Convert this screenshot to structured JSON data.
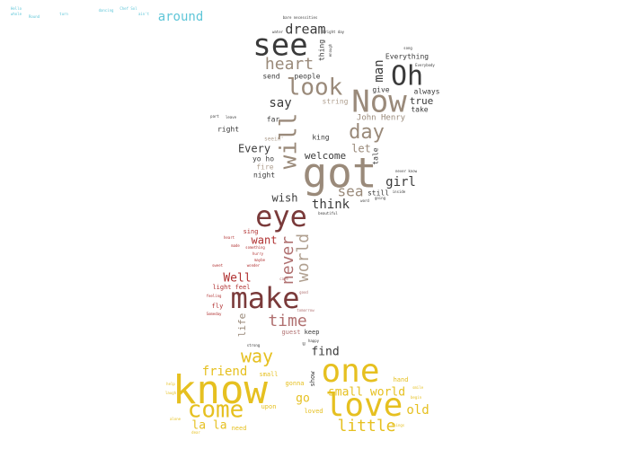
{
  "colors": {
    "background": "#ffffff",
    "cyan": "#5fc6d8",
    "grey_dark": "#3a3a3a",
    "taupe": "#9a8a7a",
    "brown": "#7a3a3a",
    "red": "#b03030",
    "rose": "#b07070",
    "gold": "#e6c020",
    "tan": "#b0a090"
  },
  "words": [
    {
      "text": "know",
      "color": "gold"
    },
    {
      "text": "got",
      "color": "taupe"
    },
    {
      "text": "one",
      "color": "gold"
    },
    {
      "text": "love",
      "color": "gold"
    },
    {
      "text": "Now",
      "color": "taupe"
    },
    {
      "text": "make",
      "color": "brown"
    },
    {
      "text": "see",
      "color": "grey_dark"
    },
    {
      "text": "eye",
      "color": "brown"
    },
    {
      "text": "come",
      "color": "gold"
    },
    {
      "text": "Oh",
      "color": "grey_dark"
    },
    {
      "text": "look",
      "color": "taupe"
    },
    {
      "text": "will",
      "color": "taupe"
    },
    {
      "text": "heart",
      "color": "taupe"
    },
    {
      "text": "day",
      "color": "taupe"
    },
    {
      "text": "little",
      "color": "gold"
    },
    {
      "text": "way",
      "color": "gold"
    },
    {
      "text": "time",
      "color": "rose"
    },
    {
      "text": "never",
      "color": "rose"
    },
    {
      "text": "world",
      "color": "tan"
    },
    {
      "text": "dream",
      "color": "grey_dark"
    },
    {
      "text": "say",
      "color": "grey_dark"
    },
    {
      "text": "sea",
      "color": "taupe"
    },
    {
      "text": "girl",
      "color": "grey_dark"
    },
    {
      "text": "man",
      "color": "grey_dark"
    },
    {
      "text": "think",
      "color": "grey_dark"
    },
    {
      "text": "friend",
      "color": "gold"
    },
    {
      "text": "old",
      "color": "gold"
    },
    {
      "text": "small world",
      "color": "gold"
    },
    {
      "text": "around",
      "color": "cyan"
    },
    {
      "text": "Well",
      "color": "red"
    },
    {
      "text": "find",
      "color": "grey_dark"
    },
    {
      "text": "wish",
      "color": "grey_dark"
    },
    {
      "text": "welcome",
      "color": "grey_dark"
    },
    {
      "text": "Every",
      "color": "grey_dark"
    },
    {
      "text": "let",
      "color": "taupe"
    },
    {
      "text": "la la",
      "color": "gold"
    },
    {
      "text": "want",
      "color": "red"
    },
    {
      "text": "go",
      "color": "gold"
    },
    {
      "text": "true",
      "color": "grey_dark"
    },
    {
      "text": "life",
      "color": "taupe"
    },
    {
      "text": "John Henry",
      "color": "taupe"
    },
    {
      "text": "Everything",
      "color": "grey_dark"
    },
    {
      "text": "people",
      "color": "grey_dark"
    },
    {
      "text": "far",
      "color": "grey_dark"
    },
    {
      "text": "right",
      "color": "grey_dark"
    },
    {
      "text": "king",
      "color": "grey_dark"
    },
    {
      "text": "take",
      "color": "grey_dark"
    },
    {
      "text": "give",
      "color": "grey_dark"
    },
    {
      "text": "always",
      "color": "grey_dark"
    },
    {
      "text": "still",
      "color": "grey_dark"
    },
    {
      "text": "tale",
      "color": "grey_dark"
    },
    {
      "text": "thing",
      "color": "grey_dark"
    },
    {
      "text": "send",
      "color": "grey_dark"
    },
    {
      "text": "string",
      "color": "tan"
    },
    {
      "text": "yo ho",
      "color": "grey_dark"
    },
    {
      "text": "fire",
      "color": "tan"
    },
    {
      "text": "night",
      "color": "grey_dark"
    },
    {
      "text": "sing",
      "color": "red"
    },
    {
      "text": "light",
      "color": "red"
    },
    {
      "text": "feel",
      "color": "red"
    },
    {
      "text": "fly",
      "color": "red"
    },
    {
      "text": "keep",
      "color": "grey_dark"
    },
    {
      "text": "guest",
      "color": "rose"
    },
    {
      "text": "small",
      "color": "gold"
    },
    {
      "text": "gonna",
      "color": "gold"
    },
    {
      "text": "hand",
      "color": "gold"
    },
    {
      "text": "upon",
      "color": "gold"
    },
    {
      "text": "loved",
      "color": "gold"
    },
    {
      "text": "need",
      "color": "gold"
    },
    {
      "text": "show",
      "color": "grey_dark"
    },
    {
      "text": "seein'",
      "color": "tan"
    },
    {
      "text": "u",
      "color": "grey_dark"
    },
    {
      "text": "Hello",
      "color": "cyan"
    },
    {
      "text": "whole",
      "color": "cyan"
    },
    {
      "text": "Round",
      "color": "cyan"
    },
    {
      "text": "turn",
      "color": "cyan"
    },
    {
      "text": "Chef Sol",
      "color": "cyan"
    },
    {
      "text": "dancing",
      "color": "cyan"
    },
    {
      "text": "ain't",
      "color": "cyan"
    },
    {
      "text": "bare necessities",
      "color": "grey_dark"
    },
    {
      "text": "bright day",
      "color": "grey_dark"
    },
    {
      "text": "song",
      "color": "grey_dark"
    },
    {
      "text": "Everybody",
      "color": "grey_dark"
    },
    {
      "text": "enough",
      "color": "grey_dark"
    },
    {
      "text": "water",
      "color": "grey_dark"
    },
    {
      "text": "never know",
      "color": "grey_dark"
    },
    {
      "text": "beautiful",
      "color": "grey_dark"
    },
    {
      "text": "strong",
      "color": "grey_dark"
    },
    {
      "text": "happy",
      "color": "grey_dark"
    },
    {
      "text": "leave",
      "color": "grey_dark"
    },
    {
      "text": "part",
      "color": "grey_dark"
    },
    {
      "text": "word",
      "color": "grey_dark"
    },
    {
      "text": "inside",
      "color": "grey_dark"
    },
    {
      "text": "going",
      "color": "grey_dark"
    },
    {
      "text": "heart",
      "color": "red"
    },
    {
      "text": "made",
      "color": "red"
    },
    {
      "text": "something",
      "color": "red"
    },
    {
      "text": "hurry",
      "color": "red"
    },
    {
      "text": "maybe",
      "color": "red"
    },
    {
      "text": "sweet",
      "color": "red"
    },
    {
      "text": "wonder",
      "color": "red"
    },
    {
      "text": "feeling",
      "color": "red"
    },
    {
      "text": "Someday",
      "color": "red"
    },
    {
      "text": "care",
      "color": "rose"
    },
    {
      "text": "good",
      "color": "rose"
    },
    {
      "text": "tomorrow",
      "color": "rose"
    },
    {
      "text": "help",
      "color": "gold"
    },
    {
      "text": "laugh",
      "color": "gold"
    },
    {
      "text": "smile",
      "color": "gold"
    },
    {
      "text": "begin",
      "color": "gold"
    },
    {
      "text": "alone",
      "color": "gold"
    },
    {
      "text": "dear",
      "color": "gold"
    },
    {
      "text": "things",
      "color": "gold"
    }
  ]
}
